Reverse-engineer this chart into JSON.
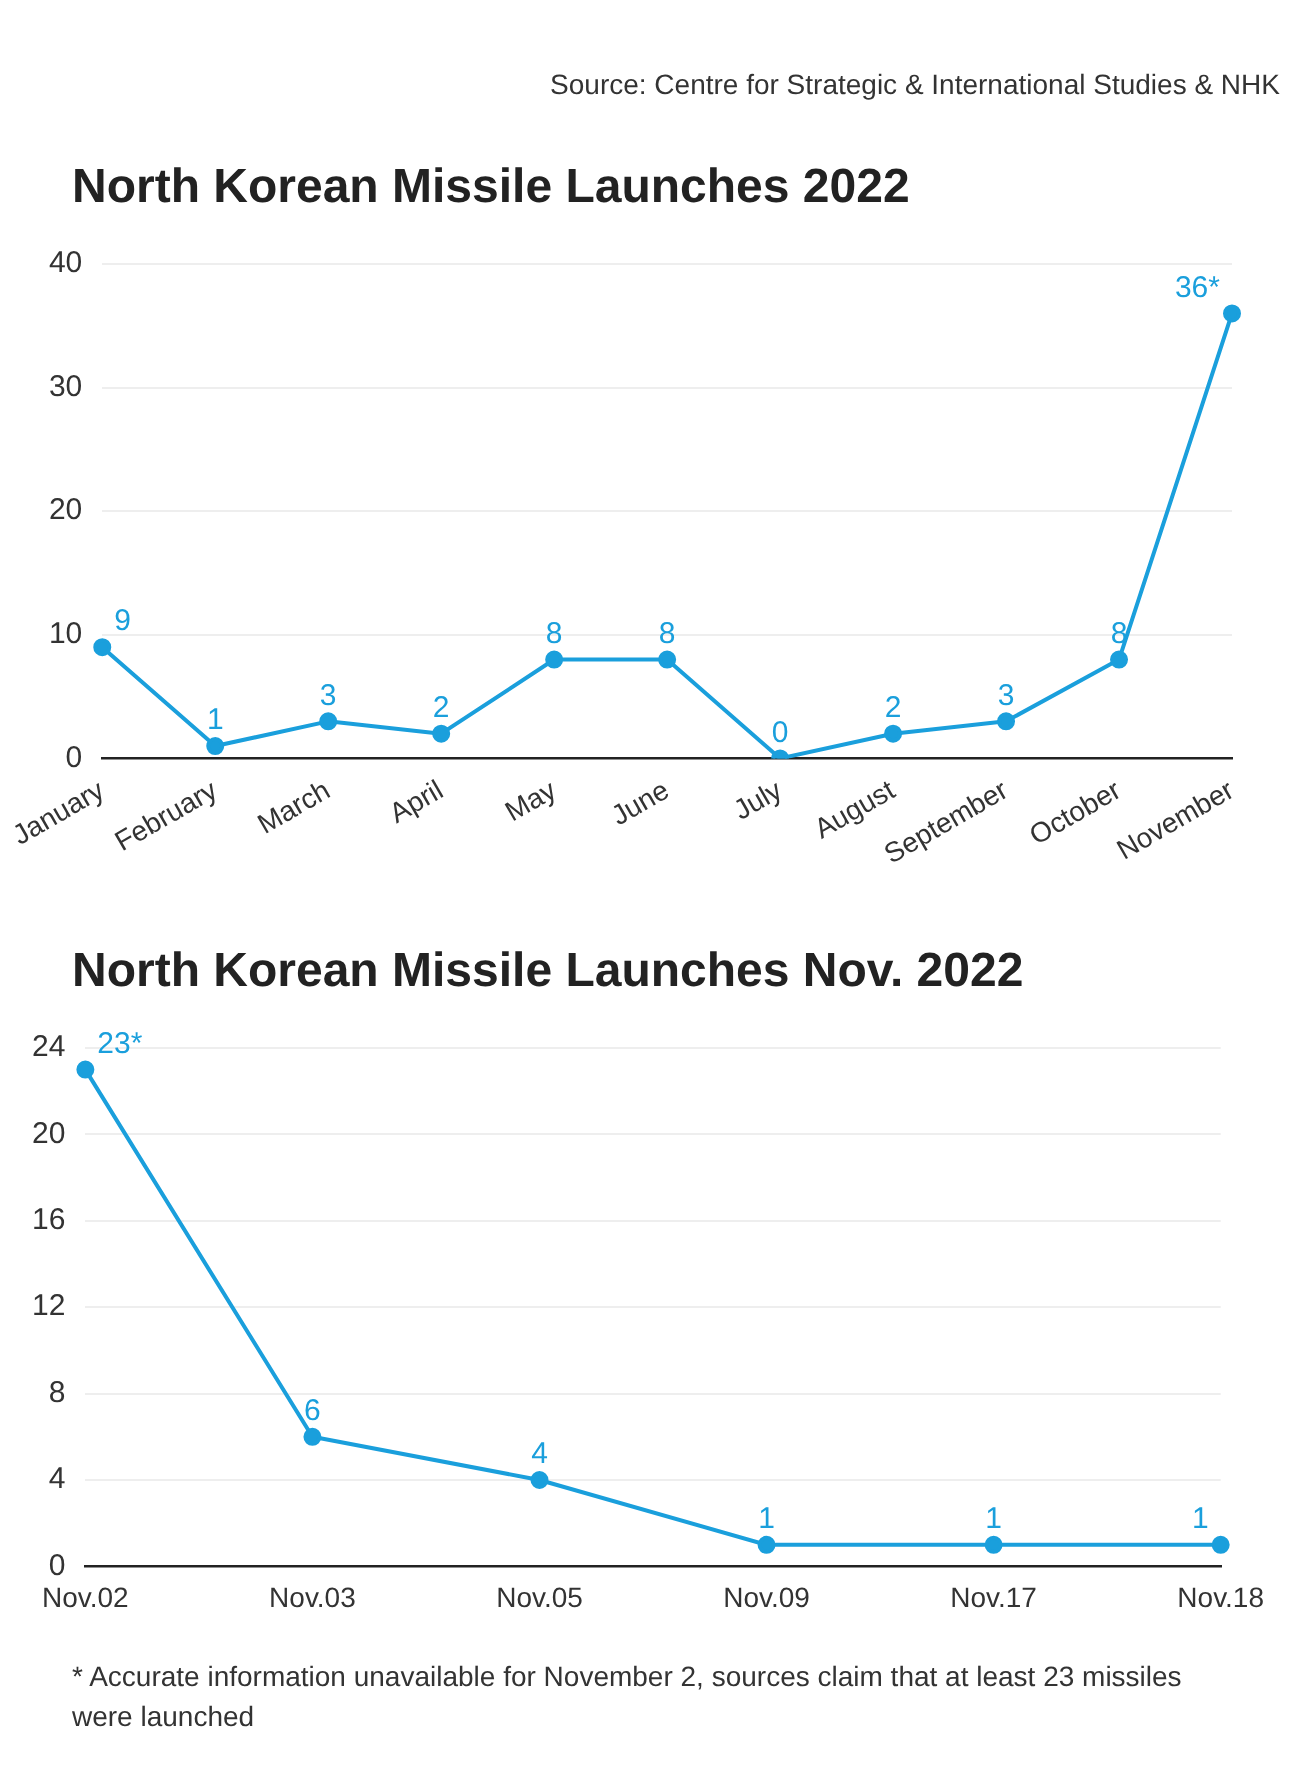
{
  "chart_data": [
    {
      "type": "line",
      "title": "North Korean Missile Launches 2022",
      "categories": [
        "January",
        "February",
        "March",
        "April",
        "May",
        "June",
        "July",
        "August",
        "September",
        "October",
        "November"
      ],
      "series": [
        {
          "color": "#1a9fdc",
          "values": [
            9,
            1,
            3,
            2,
            8,
            8,
            0,
            2,
            3,
            8,
            36
          ],
          "value_labels": [
            "9",
            "1",
            "3",
            "2",
            "8",
            "8",
            "0",
            "2",
            "3",
            "8",
            "36*"
          ]
        }
      ],
      "ylim": [
        0,
        40
      ],
      "yticks": [
        0,
        10,
        20,
        30,
        40
      ],
      "grid": "y",
      "marker": "circle",
      "line_style": "solid",
      "legend": false,
      "annotations": [
        "Source: Centre for Strategic & International Studies & NHK"
      ]
    },
    {
      "type": "line",
      "title": "North Korean Missile Launches Nov. 2022",
      "categories": [
        "Nov.02",
        "Nov.03",
        "Nov.05",
        "Nov.09",
        "Nov.17",
        "Nov.18"
      ],
      "series": [
        {
          "color": "#1a9fdc",
          "values": [
            23,
            6,
            4,
            1,
            1,
            1
          ],
          "value_labels": [
            "23*",
            "6",
            "4",
            "1",
            "1",
            "1"
          ]
        }
      ],
      "ylim": [
        0,
        24
      ],
      "yticks": [
        0,
        4,
        8,
        12,
        16,
        20,
        24
      ],
      "grid": "y",
      "marker": "circle",
      "line_style": "solid",
      "legend": false,
      "annotations": [
        "* Accurate information unavailable for November 2, sources claim that at least 23 missiles were launched"
      ]
    }
  ]
}
